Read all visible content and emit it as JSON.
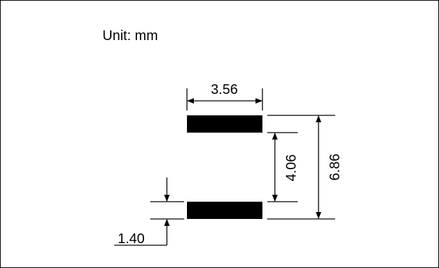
{
  "unit_label": "Unit: mm",
  "dimensions": {
    "pad_width": "3.56",
    "pad_gap": "4.06",
    "overall_length": "6.86",
    "pad_length": "1.40"
  },
  "colors": {
    "ink": "#000000",
    "pad_fill": "#000000",
    "background": "#ffffff"
  }
}
